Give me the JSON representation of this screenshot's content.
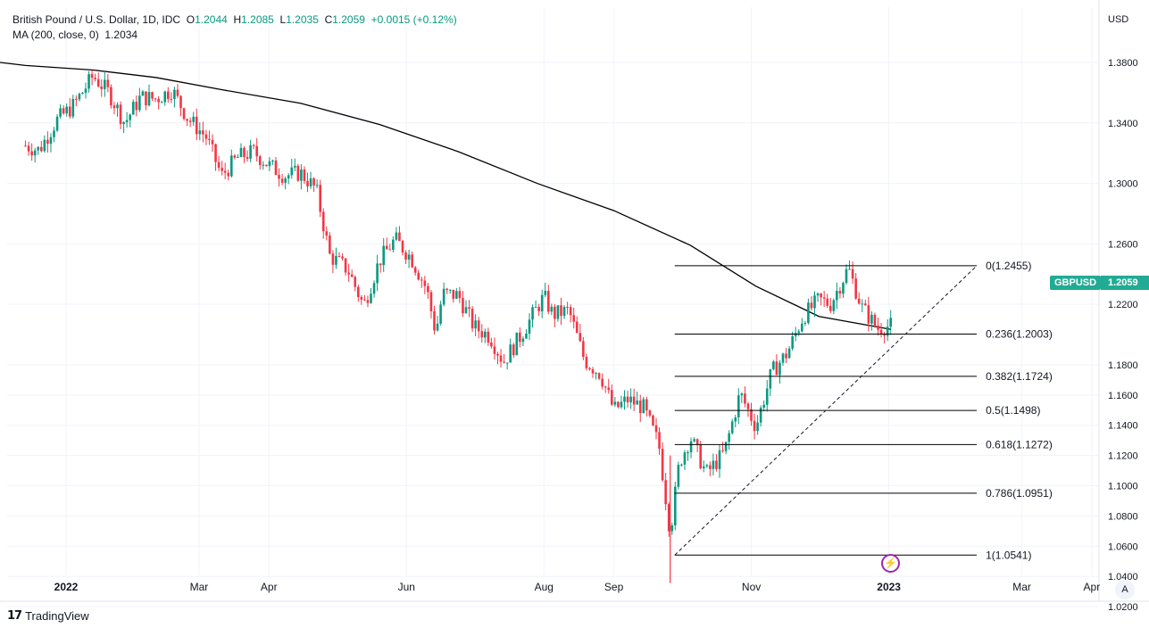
{
  "legend": {
    "symbol_name": "British Pound / U.S. Dollar, 1D, IDC",
    "o_key": "O",
    "o_val": "1.2044",
    "h_key": "H",
    "h_val": "1.2085",
    "l_key": "L",
    "l_val": "1.2035",
    "c_key": "C",
    "c_val": "1.2059",
    "change": "+0.0015 (+0.12%)",
    "ma_label": "MA (200, close, 0)",
    "ma_val": "1.2034"
  },
  "price_scale": {
    "currency": "USD",
    "ticks": [
      "1.3800",
      "1.3400",
      "1.3000",
      "1.2600",
      "1.2200",
      "1.1800",
      "1.1600",
      "1.1400",
      "1.1200",
      "1.1000",
      "1.0800",
      "1.0600",
      "1.0400",
      "1.0200"
    ]
  },
  "badges": {
    "symbol": "GBPUSD",
    "price": "1.2059"
  },
  "time_axis": {
    "labels": [
      "2022",
      "Mar",
      "Apr",
      "Jun",
      "Aug",
      "Sep",
      "Nov",
      "2023",
      "Mar",
      "Apr"
    ]
  },
  "auto_button": "A",
  "branding": {
    "name": "TradingView"
  },
  "colors": {
    "up": "#089981",
    "down": "#f23645",
    "ma": "#000000",
    "fib": "#000000",
    "badge": "#22ab94",
    "event": "#9c27b0"
  },
  "icons": {
    "event": "lightning-icon",
    "logo": "tradingview-logo-icon"
  },
  "chart_data": {
    "type": "candlestick",
    "title": "British Pound / U.S. Dollar, 1D, IDC",
    "ylabel": "USD",
    "ylim": [
      1.01,
      1.405
    ],
    "grid": true,
    "x_labels": [
      "2022",
      "Mar",
      "Apr",
      "Jun",
      "Aug",
      "Sep",
      "Nov",
      "2023",
      "Mar",
      "Apr"
    ],
    "series": [
      {
        "name": "GBPUSD",
        "type": "close_path",
        "points": [
          [
            "2021-12-14",
            1.325
          ],
          [
            "2021-12-20",
            1.322
          ],
          [
            "2021-12-28",
            1.342
          ],
          [
            "2022-01-04",
            1.351
          ],
          [
            "2022-01-13",
            1.371
          ],
          [
            "2022-01-20",
            1.36
          ],
          [
            "2022-01-27",
            1.34
          ],
          [
            "2022-02-03",
            1.357
          ],
          [
            "2022-02-10",
            1.356
          ],
          [
            "2022-02-17",
            1.362
          ],
          [
            "2022-02-24",
            1.343
          ],
          [
            "2022-03-04",
            1.331
          ],
          [
            "2022-03-11",
            1.305
          ],
          [
            "2022-03-18",
            1.317
          ],
          [
            "2022-03-25",
            1.321
          ],
          [
            "2022-04-01",
            1.312
          ],
          [
            "2022-04-08",
            1.305
          ],
          [
            "2022-04-15",
            1.307
          ],
          [
            "2022-04-22",
            1.296
          ],
          [
            "2022-04-28",
            1.252
          ],
          [
            "2022-05-06",
            1.243
          ],
          [
            "2022-05-13",
            1.219
          ],
          [
            "2022-05-20",
            1.249
          ],
          [
            "2022-05-27",
            1.263
          ],
          [
            "2022-06-03",
            1.251
          ],
          [
            "2022-06-10",
            1.23
          ],
          [
            "2022-06-14",
            1.201
          ],
          [
            "2022-06-17",
            1.227
          ],
          [
            "2022-06-24",
            1.226
          ],
          [
            "2022-07-01",
            1.205
          ],
          [
            "2022-07-08",
            1.199
          ],
          [
            "2022-07-14",
            1.182
          ],
          [
            "2022-07-22",
            1.2
          ],
          [
            "2022-07-29",
            1.218
          ],
          [
            "2022-08-01",
            1.225
          ],
          [
            "2022-08-05",
            1.213
          ],
          [
            "2022-08-12",
            1.216
          ],
          [
            "2022-08-19",
            1.183
          ],
          [
            "2022-08-26",
            1.174
          ],
          [
            "2022-09-01",
            1.15
          ],
          [
            "2022-09-07",
            1.157
          ],
          [
            "2022-09-14",
            1.152
          ],
          [
            "2022-09-21",
            1.127
          ],
          [
            "2022-09-26",
            1.069
          ],
          [
            "2022-09-30",
            1.115
          ],
          [
            "2022-10-05",
            1.132
          ],
          [
            "2022-10-12",
            1.108
          ],
          [
            "2022-10-20",
            1.122
          ],
          [
            "2022-10-27",
            1.161
          ],
          [
            "2022-11-03",
            1.139
          ],
          [
            "2022-11-10",
            1.175
          ],
          [
            "2022-11-17",
            1.188
          ],
          [
            "2022-11-24",
            1.212
          ],
          [
            "2022-12-01",
            1.223
          ],
          [
            "2022-12-06",
            1.22
          ],
          [
            "2022-12-14",
            1.244
          ],
          [
            "2022-12-20",
            1.218
          ],
          [
            "2022-12-27",
            1.204
          ],
          [
            "2023-01-02",
            1.2059
          ]
        ]
      },
      {
        "name": "MA (200, close, 0)",
        "type": "line",
        "points": [
          [
            "2021-12-14",
            1.378
          ],
          [
            "2022-01-13",
            1.375
          ],
          [
            "2022-02-10",
            1.37
          ],
          [
            "2022-03-11",
            1.362
          ],
          [
            "2022-04-15",
            1.353
          ],
          [
            "2022-05-20",
            1.339
          ],
          [
            "2022-06-24",
            1.321
          ],
          [
            "2022-07-29",
            1.3
          ],
          [
            "2022-09-01",
            1.282
          ],
          [
            "2022-10-05",
            1.259
          ],
          [
            "2022-11-03",
            1.232
          ],
          [
            "2022-12-01",
            1.212
          ],
          [
            "2023-01-02",
            1.2034
          ]
        ]
      }
    ],
    "fibonacci": {
      "levels": [
        {
          "ratio": "0",
          "price": 1.2455,
          "label": "0(1.2455)"
        },
        {
          "ratio": "0.236",
          "price": 1.2003,
          "label": "0.236(1.2003)"
        },
        {
          "ratio": "0.382",
          "price": 1.1724,
          "label": "0.382(1.1724)"
        },
        {
          "ratio": "0.5",
          "price": 1.1498,
          "label": "0.5(1.1498)"
        },
        {
          "ratio": "0.618",
          "price": 1.1272,
          "label": "0.618(1.1272)"
        },
        {
          "ratio": "0.786",
          "price": 1.0951,
          "label": "0.786(1.0951)"
        },
        {
          "ratio": "1",
          "price": 1.0541,
          "label": "1(1.0541)"
        }
      ],
      "start_date": "2022-09-28",
      "end_date": "2023-02-09",
      "trend_line": [
        [
          "2022-09-28",
          1.0541
        ],
        [
          "2023-02-09",
          1.2455
        ]
      ]
    }
  }
}
